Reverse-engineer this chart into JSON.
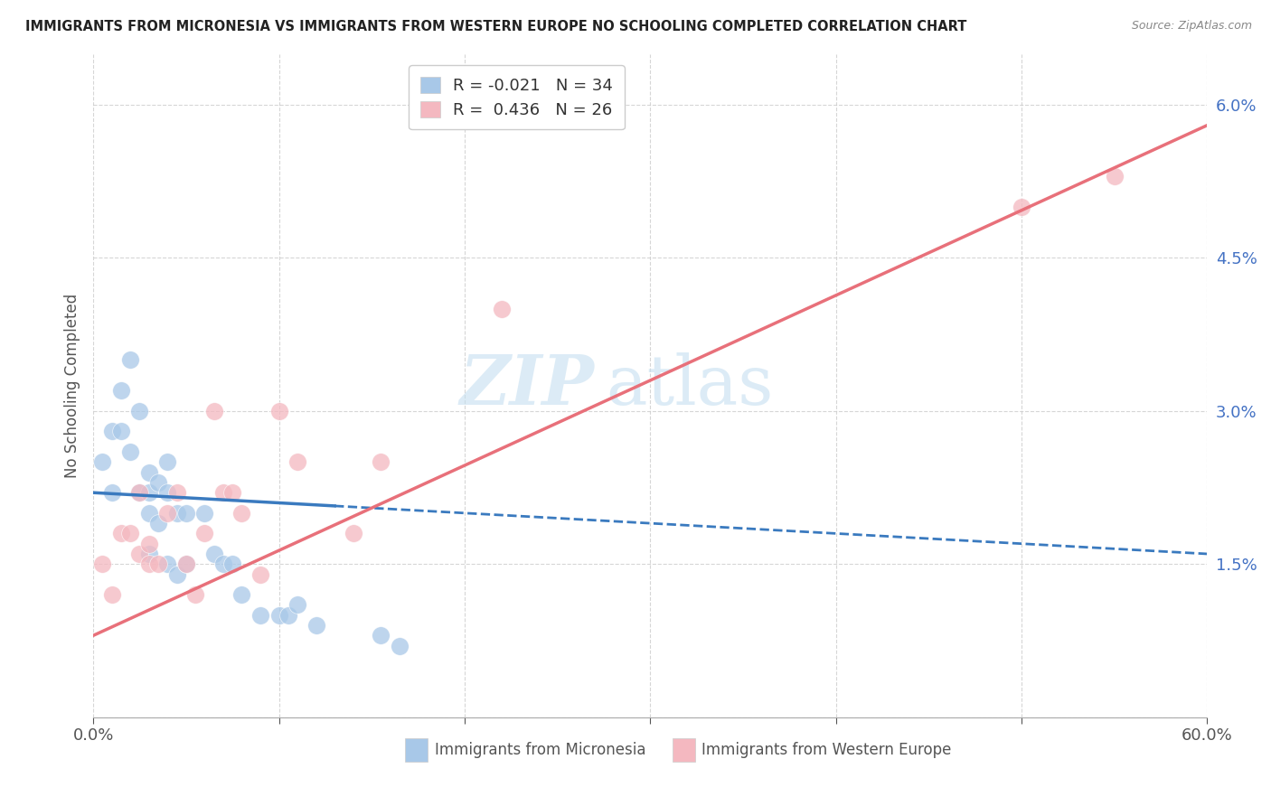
{
  "title": "IMMIGRANTS FROM MICRONESIA VS IMMIGRANTS FROM WESTERN EUROPE NO SCHOOLING COMPLETED CORRELATION CHART",
  "source": "Source: ZipAtlas.com",
  "ylabel": "No Schooling Completed",
  "xlim": [
    0.0,
    0.6
  ],
  "ylim": [
    0.0,
    0.065
  ],
  "xticks": [
    0.0,
    0.1,
    0.2,
    0.3,
    0.4,
    0.5,
    0.6
  ],
  "xticklabels": [
    "0.0%",
    "",
    "",
    "",
    "",
    "",
    "60.0%"
  ],
  "yticks": [
    0.0,
    0.015,
    0.03,
    0.045,
    0.06
  ],
  "yticklabels": [
    "",
    "1.5%",
    "3.0%",
    "4.5%",
    "6.0%"
  ],
  "blue_R": -0.021,
  "blue_N": 34,
  "pink_R": 0.436,
  "pink_N": 26,
  "legend_label_blue": "Immigrants from Micronesia",
  "legend_label_pink": "Immigrants from Western Europe",
  "blue_color": "#a8c8e8",
  "pink_color": "#f4b8c0",
  "blue_line_color": "#3a7abf",
  "pink_line_color": "#e8707a",
  "watermark_zip": "ZIP",
  "watermark_atlas": "atlas",
  "blue_x": [
    0.005,
    0.01,
    0.01,
    0.015,
    0.015,
    0.02,
    0.02,
    0.025,
    0.025,
    0.03,
    0.03,
    0.03,
    0.03,
    0.035,
    0.035,
    0.04,
    0.04,
    0.04,
    0.045,
    0.045,
    0.05,
    0.05,
    0.06,
    0.065,
    0.07,
    0.075,
    0.08,
    0.09,
    0.1,
    0.105,
    0.11,
    0.12,
    0.155,
    0.165
  ],
  "blue_y": [
    0.025,
    0.028,
    0.022,
    0.032,
    0.028,
    0.035,
    0.026,
    0.03,
    0.022,
    0.024,
    0.022,
    0.02,
    0.016,
    0.023,
    0.019,
    0.025,
    0.022,
    0.015,
    0.02,
    0.014,
    0.02,
    0.015,
    0.02,
    0.016,
    0.015,
    0.015,
    0.012,
    0.01,
    0.01,
    0.01,
    0.011,
    0.009,
    0.008,
    0.007
  ],
  "pink_x": [
    0.005,
    0.01,
    0.015,
    0.02,
    0.025,
    0.025,
    0.03,
    0.03,
    0.035,
    0.04,
    0.045,
    0.05,
    0.055,
    0.06,
    0.065,
    0.07,
    0.075,
    0.08,
    0.09,
    0.1,
    0.11,
    0.14,
    0.155,
    0.22,
    0.5,
    0.55
  ],
  "pink_y": [
    0.015,
    0.012,
    0.018,
    0.018,
    0.022,
    0.016,
    0.017,
    0.015,
    0.015,
    0.02,
    0.022,
    0.015,
    0.012,
    0.018,
    0.03,
    0.022,
    0.022,
    0.02,
    0.014,
    0.03,
    0.025,
    0.018,
    0.025,
    0.04,
    0.05,
    0.053
  ],
  "blue_trend_x0": 0.0,
  "blue_trend_y0": 0.022,
  "blue_trend_x1": 0.6,
  "blue_trend_y1": 0.016,
  "pink_trend_x0": 0.0,
  "pink_trend_y0": 0.008,
  "pink_trend_x1": 0.6,
  "pink_trend_y1": 0.058
}
